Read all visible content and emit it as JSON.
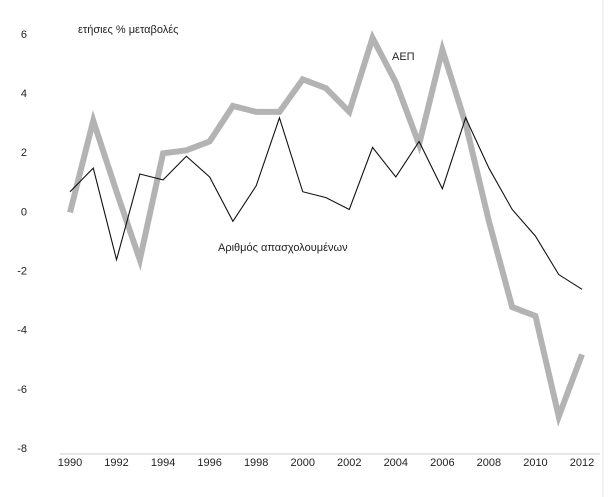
{
  "chart_data": {
    "type": "line",
    "y_label": "ετήσιες % μεταβολές",
    "x": [
      1990,
      1991,
      1992,
      1993,
      1994,
      1995,
      1996,
      1997,
      1998,
      1999,
      2000,
      2001,
      2002,
      2003,
      2004,
      2005,
      2006,
      2007,
      2008,
      2009,
      2010,
      2011,
      2012
    ],
    "series": [
      {
        "name": "ΑΕΠ",
        "color": "#b3b3b3",
        "values": [
          0,
          3.1,
          0.7,
          -1.6,
          2.0,
          2.1,
          2.4,
          3.6,
          3.4,
          3.4,
          4.5,
          4.2,
          3.4,
          5.9,
          4.4,
          2.3,
          5.5,
          3.0,
          -0.3,
          -3.2,
          -3.5,
          -6.9,
          -4.8
        ]
      },
      {
        "name": "Αριθμός απασχολουμένων",
        "color": "#111111",
        "values": [
          0.7,
          1.5,
          -1.6,
          1.3,
          1.1,
          1.9,
          1.2,
          -0.3,
          0.9,
          3.2,
          0.7,
          0.5,
          0.1,
          2.2,
          1.2,
          2.4,
          0.8,
          3.2,
          1.5,
          0.1,
          -0.8,
          -2.1,
          -2.6
        ]
      }
    ],
    "xlim": [
      1990,
      2012
    ],
    "xticks": [
      1990,
      1992,
      1994,
      1996,
      1998,
      2000,
      2002,
      2004,
      2006,
      2008,
      2010,
      2012
    ],
    "ylim": [
      -8,
      6
    ],
    "yticks": [
      -8,
      -6,
      -4,
      -2,
      0,
      2,
      4,
      6
    ]
  }
}
